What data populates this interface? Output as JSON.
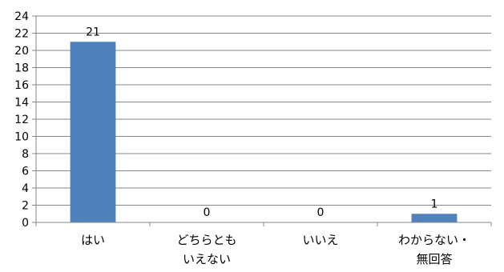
{
  "chart_data": {
    "type": "bar",
    "categories": [
      [
        "はい"
      ],
      [
        "どちらとも",
        "いえない"
      ],
      [
        "いいえ"
      ],
      [
        "わからない・",
        "無回答"
      ]
    ],
    "values": [
      21,
      0,
      0,
      1
    ],
    "data_labels": [
      "21",
      "0",
      "0",
      "1"
    ],
    "ylim": [
      0,
      24
    ],
    "yticks": [
      "0",
      "2",
      "4",
      "6",
      "8",
      "10",
      "12",
      "14",
      "16",
      "18",
      "20",
      "22",
      "24"
    ],
    "grid": true,
    "legend": "none",
    "bar_color": "#4F81BD",
    "grid_color": "#868686"
  }
}
